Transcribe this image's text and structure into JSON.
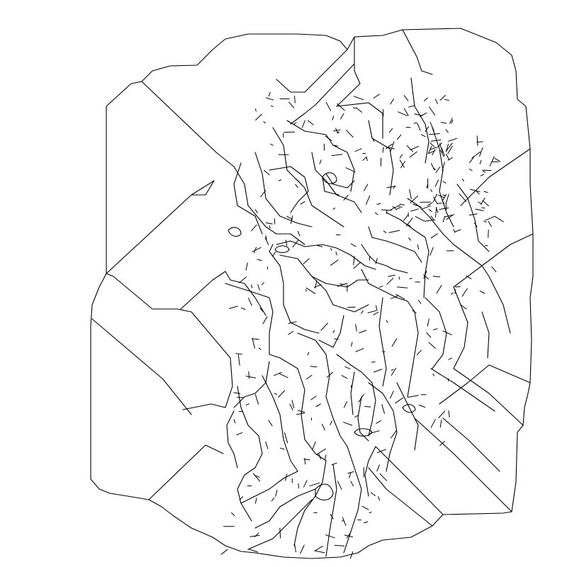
{
  "map": {
    "kind": "line-drawing",
    "description_visible_text": "",
    "colors": {
      "background": "#ffffff",
      "stroke": "#000000"
    },
    "regions": [
      "outer-boundary",
      "diagonal-band-northwest",
      "diagonal-band-northeast",
      "diagonal-band-west",
      "diagonal-band-southwest",
      "diagonal-band-southeast",
      "central-detail-cluster"
    ]
  }
}
